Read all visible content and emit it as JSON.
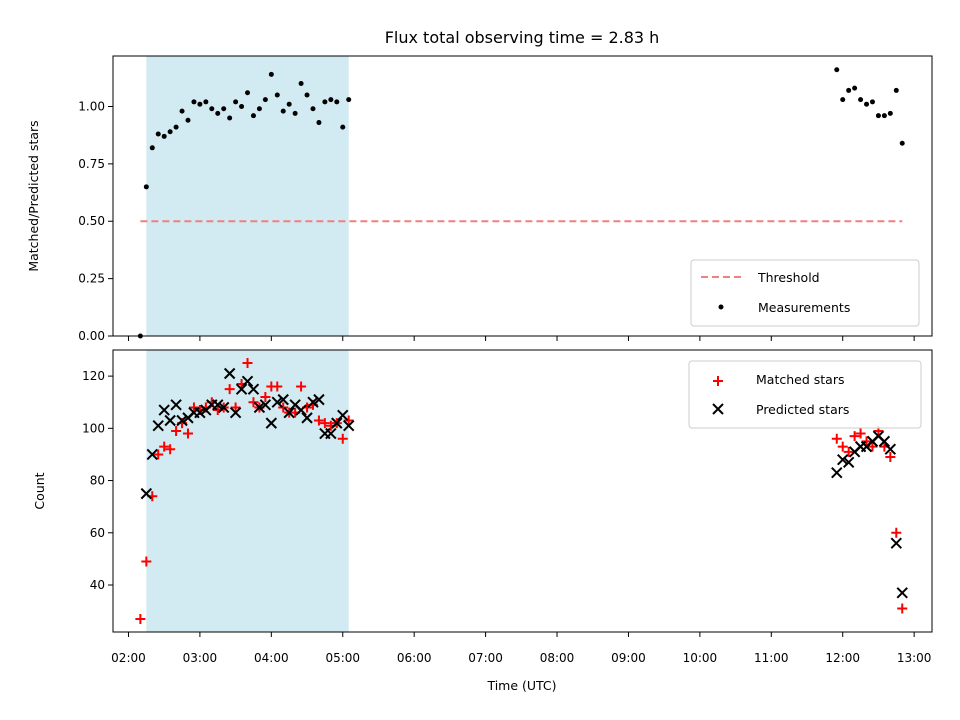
{
  "chart_data": [
    {
      "type": "scatter",
      "panel": "top",
      "title": "Flux total observing time = 2.83 h",
      "xlabel": "",
      "ylabel": "Matched/Predicted stars",
      "xlim": [
        "01:47",
        "13:15"
      ],
      "ylim": [
        0.0,
        1.22
      ],
      "yticks": [
        "0.00",
        "0.25",
        "0.50",
        "0.75",
        "1.00"
      ],
      "shaded_interval": {
        "x_start": "02:15",
        "x_end": "05:05",
        "color": "#add8e6"
      },
      "threshold": {
        "name": "Threshold",
        "y": 0.5,
        "x_start": "02:10",
        "x_end": "12:50",
        "color": "#f08080"
      },
      "series": [
        {
          "name": "Measurements",
          "marker": "dot",
          "color": "#000000",
          "points": [
            [
              "02:10",
              0.0
            ],
            [
              "02:15",
              0.65
            ],
            [
              "02:20",
              0.82
            ],
            [
              "02:25",
              0.88
            ],
            [
              "02:30",
              0.87
            ],
            [
              "02:35",
              0.89
            ],
            [
              "02:40",
              0.91
            ],
            [
              "02:45",
              0.98
            ],
            [
              "02:50",
              0.94
            ],
            [
              "02:55",
              1.02
            ],
            [
              "03:00",
              1.01
            ],
            [
              "03:05",
              1.02
            ],
            [
              "03:10",
              0.99
            ],
            [
              "03:15",
              0.97
            ],
            [
              "03:20",
              0.99
            ],
            [
              "03:25",
              0.95
            ],
            [
              "03:30",
              1.02
            ],
            [
              "03:35",
              1.0
            ],
            [
              "03:40",
              1.06
            ],
            [
              "03:45",
              0.96
            ],
            [
              "03:50",
              0.99
            ],
            [
              "03:55",
              1.03
            ],
            [
              "04:00",
              1.14
            ],
            [
              "04:05",
              1.05
            ],
            [
              "04:10",
              0.98
            ],
            [
              "04:15",
              1.01
            ],
            [
              "04:20",
              0.97
            ],
            [
              "04:25",
              1.1
            ],
            [
              "04:30",
              1.05
            ],
            [
              "04:35",
              0.99
            ],
            [
              "04:40",
              0.93
            ],
            [
              "04:45",
              1.02
            ],
            [
              "04:50",
              1.03
            ],
            [
              "04:55",
              1.02
            ],
            [
              "05:00",
              0.91
            ],
            [
              "05:05",
              1.03
            ],
            [
              "11:55",
              1.16
            ],
            [
              "12:00",
              1.03
            ],
            [
              "12:05",
              1.07
            ],
            [
              "12:10",
              1.08
            ],
            [
              "12:15",
              1.03
            ],
            [
              "12:20",
              1.01
            ],
            [
              "12:25",
              1.02
            ],
            [
              "12:30",
              0.96
            ],
            [
              "12:35",
              0.96
            ],
            [
              "12:40",
              0.97
            ],
            [
              "12:45",
              1.07
            ],
            [
              "12:50",
              0.84
            ]
          ]
        }
      ],
      "legend": {
        "position": "lower-right",
        "entries": [
          "Threshold",
          "Measurements"
        ]
      }
    },
    {
      "type": "scatter",
      "panel": "bottom",
      "title": "",
      "xlabel": "Time (UTC)",
      "ylabel": "Count",
      "xlim": [
        "01:47",
        "13:15"
      ],
      "ylim": [
        22,
        130
      ],
      "yticks": [
        "40",
        "60",
        "80",
        "100",
        "120"
      ],
      "xticks": [
        "02:00",
        "03:00",
        "04:00",
        "05:00",
        "06:00",
        "07:00",
        "08:00",
        "09:00",
        "10:00",
        "11:00",
        "12:00",
        "13:00"
      ],
      "shaded_interval": {
        "x_start": "02:15",
        "x_end": "05:05",
        "color": "#add8e6"
      },
      "series": [
        {
          "name": "Matched stars",
          "marker": "plus",
          "color": "#ff0000",
          "points": [
            [
              "02:10",
              27
            ],
            [
              "02:15",
              49
            ],
            [
              "02:20",
              74
            ],
            [
              "02:25",
              90
            ],
            [
              "02:30",
              93
            ],
            [
              "02:35",
              92
            ],
            [
              "02:40",
              99
            ],
            [
              "02:45",
              102
            ],
            [
              "02:50",
              98
            ],
            [
              "02:55",
              108
            ],
            [
              "03:00",
              107
            ],
            [
              "03:05",
              108
            ],
            [
              "03:10",
              110
            ],
            [
              "03:15",
              107
            ],
            [
              "03:20",
              108
            ],
            [
              "03:25",
              115
            ],
            [
              "03:30",
              108
            ],
            [
              "03:35",
              117
            ],
            [
              "03:40",
              125
            ],
            [
              "03:45",
              110
            ],
            [
              "03:50",
              108
            ],
            [
              "03:55",
              112
            ],
            [
              "04:00",
              116
            ],
            [
              "04:05",
              116
            ],
            [
              "04:10",
              108
            ],
            [
              "04:15",
              106
            ],
            [
              "04:20",
              106
            ],
            [
              "04:25",
              116
            ],
            [
              "04:30",
              108
            ],
            [
              "04:35",
              109
            ],
            [
              "04:40",
              103
            ],
            [
              "04:45",
              102
            ],
            [
              "04:50",
              101
            ],
            [
              "04:55",
              102
            ],
            [
              "05:00",
              96
            ],
            [
              "05:05",
              103
            ],
            [
              "11:55",
              96
            ],
            [
              "12:00",
              93
            ],
            [
              "12:05",
              91
            ],
            [
              "12:10",
              97
            ],
            [
              "12:15",
              98
            ],
            [
              "12:20",
              95
            ],
            [
              "12:25",
              93
            ],
            [
              "12:30",
              99
            ],
            [
              "12:35",
              93
            ],
            [
              "12:40",
              89
            ],
            [
              "12:45",
              60
            ],
            [
              "12:50",
              31
            ]
          ]
        },
        {
          "name": "Predicted stars",
          "marker": "x",
          "color": "#000000",
          "points": [
            [
              "02:15",
              75
            ],
            [
              "02:20",
              90
            ],
            [
              "02:25",
              101
            ],
            [
              "02:30",
              107
            ],
            [
              "02:35",
              103
            ],
            [
              "02:40",
              109
            ],
            [
              "02:45",
              103
            ],
            [
              "02:50",
              104
            ],
            [
              "02:55",
              106
            ],
            [
              "03:00",
              106
            ],
            [
              "03:05",
              107
            ],
            [
              "03:10",
              109
            ],
            [
              "03:15",
              109
            ],
            [
              "03:20",
              108
            ],
            [
              "03:25",
              121
            ],
            [
              "03:30",
              106
            ],
            [
              "03:35",
              115
            ],
            [
              "03:40",
              118
            ],
            [
              "03:45",
              115
            ],
            [
              "03:50",
              108
            ],
            [
              "03:55",
              109
            ],
            [
              "04:00",
              102
            ],
            [
              "04:05",
              110
            ],
            [
              "04:10",
              111
            ],
            [
              "04:15",
              106
            ],
            [
              "04:20",
              109
            ],
            [
              "04:25",
              107
            ],
            [
              "04:30",
              104
            ],
            [
              "04:35",
              110
            ],
            [
              "04:40",
              111
            ],
            [
              "04:45",
              98
            ],
            [
              "04:50",
              98
            ],
            [
              "04:55",
              102
            ],
            [
              "05:00",
              105
            ],
            [
              "05:05",
              101
            ],
            [
              "11:55",
              83
            ],
            [
              "12:00",
              88
            ],
            [
              "12:05",
              87
            ],
            [
              "12:10",
              91
            ],
            [
              "12:15",
              93
            ],
            [
              "12:20",
              93
            ],
            [
              "12:25",
              95
            ],
            [
              "12:30",
              97
            ],
            [
              "12:35",
              95
            ],
            [
              "12:40",
              92
            ],
            [
              "12:45",
              56
            ],
            [
              "12:50",
              37
            ]
          ]
        }
      ],
      "legend": {
        "position": "top-right",
        "entries": [
          "Matched stars",
          "Predicted stars"
        ]
      }
    }
  ]
}
